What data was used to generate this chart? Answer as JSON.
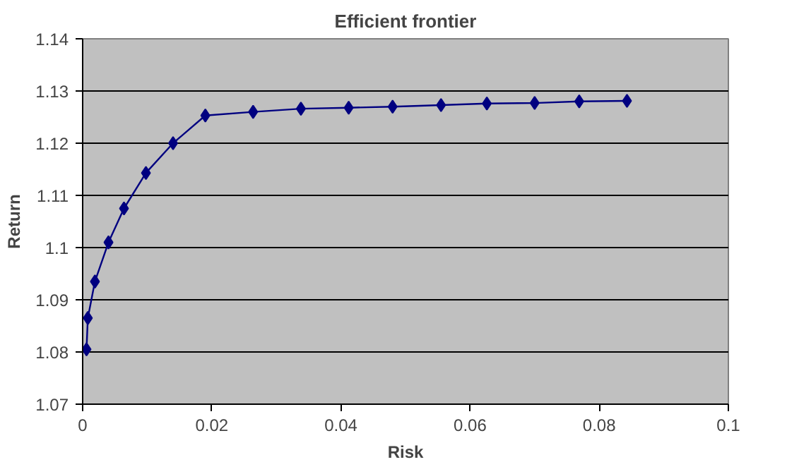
{
  "chart_data": {
    "type": "line",
    "title": "Efficient frontier",
    "xlabel": "Risk",
    "ylabel": "Return",
    "x": [
      0.0006,
      0.0008,
      0.0019,
      0.004,
      0.0064,
      0.0098,
      0.014,
      0.019,
      0.0264,
      0.0338,
      0.0412,
      0.048,
      0.0555,
      0.0626,
      0.07,
      0.0769,
      0.0843
    ],
    "series": [
      {
        "color": "#000080",
        "values": [
          1.0805,
          1.0865,
          1.0935,
          1.101,
          1.1075,
          1.1143,
          1.12,
          1.1253,
          1.126,
          1.1266,
          1.1268,
          1.127,
          1.1273,
          1.1276,
          1.1277,
          1.128,
          1.1281
        ]
      }
    ],
    "xlim": [
      0,
      0.1
    ],
    "xticks": [
      0,
      0.02,
      0.04,
      0.06,
      0.08,
      0.1
    ],
    "ylim": [
      1.07,
      1.14
    ],
    "yticks": [
      1.07,
      1.08,
      1.09,
      1.1,
      1.11,
      1.12,
      1.13,
      1.14
    ],
    "grid": "y",
    "marker": "diamond",
    "line_style": "solid"
  }
}
